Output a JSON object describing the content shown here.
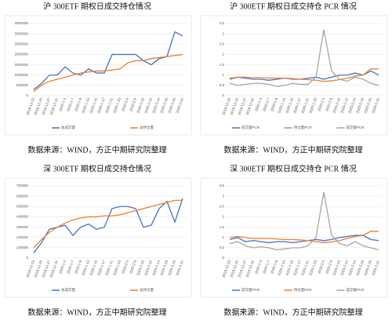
{
  "chart_data": [
    {
      "type": "line",
      "title": "沪 300ETF 期权日成交持仓情况",
      "source": "数据来源：WIND，方正中期研究院整理",
      "categories": [
        "2019-12-23",
        "2019-12-25",
        "2019-12-27",
        "2019-12-31",
        "2020-1-3",
        "2020-1-7",
        "2020-1-9",
        "2020-1-13",
        "2020-1-15",
        "2020-1-17",
        "2020-1-21",
        "2020-1-23",
        "2020-2-4",
        "2020-2-6",
        "2020-2-10",
        "2020-2-12",
        "2020-2-14",
        "2020-2-18",
        "2020-2-20",
        "2020-2-21"
      ],
      "series": [
        {
          "name": "总成交量",
          "color": "#4472c4",
          "values": [
            300000,
            600000,
            1000000,
            1000000,
            1400000,
            1100000,
            1000000,
            1300000,
            1100000,
            1100000,
            2000000,
            2000000,
            2000000,
            2000000,
            1700000,
            1500000,
            1800000,
            1900000,
            3100000,
            2900000
          ]
        },
        {
          "name": "总持仓量",
          "color": "#ed7d31",
          "values": [
            200000,
            500000,
            700000,
            800000,
            900000,
            1000000,
            1100000,
            1150000,
            1200000,
            1200000,
            1250000,
            1300000,
            1600000,
            1700000,
            1700000,
            1800000,
            1850000,
            1900000,
            1950000,
            2000000
          ]
        }
      ],
      "ylim": [
        0,
        3500000
      ],
      "yticks": [
        0,
        500000,
        1000000,
        1500000,
        2000000,
        2500000,
        3000000,
        3500000
      ]
    },
    {
      "type": "line",
      "title": "沪 300ETF 期权日成交持仓 PCR 情况",
      "source": "数据来源：WIND，方正中期研究院整理",
      "categories": [
        "2019-12-23",
        "2019-12-25",
        "2019-12-27",
        "2019-12-31",
        "2020-1-3",
        "2020-1-7",
        "2020-1-9",
        "2020-1-13",
        "2020-1-15",
        "2020-1-17",
        "2020-1-21",
        "2020-1-23",
        "2020-2-4",
        "2020-2-6",
        "2020-2-10",
        "2020-2-12",
        "2020-2-14",
        "2020-2-18",
        "2020-2-20",
        "2020-2-21"
      ],
      "series": [
        {
          "name": "成交量PCR",
          "color": "#4472c4",
          "values": [
            0.8,
            0.9,
            0.85,
            0.8,
            0.8,
            0.75,
            0.8,
            0.85,
            0.8,
            0.8,
            0.85,
            0.9,
            0.8,
            0.9,
            1.0,
            1.0,
            1.1,
            1.0,
            1.2,
            1.0
          ]
        },
        {
          "name": "持仓量PCR",
          "color": "#ed7d31",
          "values": [
            0.85,
            0.9,
            0.9,
            0.88,
            0.88,
            0.86,
            0.85,
            0.85,
            0.83,
            0.8,
            0.78,
            0.75,
            0.7,
            0.72,
            0.78,
            0.85,
            0.95,
            1.0,
            1.3,
            1.3
          ]
        },
        {
          "name": "成交额PCR",
          "color": "#a5a5a5",
          "values": [
            0.6,
            0.5,
            0.55,
            0.6,
            0.6,
            0.55,
            0.45,
            0.5,
            0.6,
            0.55,
            0.55,
            0.9,
            3.2,
            1.2,
            0.8,
            0.7,
            0.9,
            0.8,
            0.6,
            0.5
          ]
        }
      ],
      "ylim": [
        0,
        3.5
      ],
      "yticks": [
        0,
        0.5,
        1,
        1.5,
        2,
        2.5,
        3,
        3.5
      ]
    },
    {
      "type": "line",
      "title": "深 300ETF 期权日成交持仓情况",
      "source": "数据来源：WIND，方正中期研究院整理",
      "categories": [
        "2019-12-23",
        "2019-12-25",
        "2019-12-27",
        "2019-12-31",
        "2020-1-3",
        "2020-1-7",
        "2020-1-9",
        "2020-1-13",
        "2020-1-15",
        "2020-1-17",
        "2020-1-21",
        "2020-1-23",
        "2020-2-4",
        "2020-2-6",
        "2020-2-10",
        "2020-2-12",
        "2020-2-14",
        "2020-2-18",
        "2020-2-20",
        "2020-2-21"
      ],
      "series": [
        {
          "name": "总成交量",
          "color": "#4472c4",
          "values": [
            50000,
            150000,
            280000,
            300000,
            320000,
            220000,
            300000,
            330000,
            280000,
            300000,
            480000,
            500000,
            500000,
            480000,
            300000,
            320000,
            480000,
            550000,
            350000,
            580000
          ]
        },
        {
          "name": "总持仓量",
          "color": "#ed7d31",
          "values": [
            100000,
            180000,
            250000,
            300000,
            340000,
            370000,
            390000,
            400000,
            400000,
            410000,
            410000,
            420000,
            440000,
            460000,
            480000,
            500000,
            520000,
            540000,
            560000,
            560000
          ]
        }
      ],
      "ylim": [
        0,
        700000
      ],
      "yticks": [
        0,
        100000,
        200000,
        300000,
        400000,
        500000,
        600000,
        700000
      ]
    },
    {
      "type": "line",
      "title": "深 300ETF 期权日成交持仓 PCR 情况",
      "source": "数据来源：WIND，方正中期研究院整理",
      "categories": [
        "2019-12-23",
        "2019-12-25",
        "2019-12-27",
        "2019-12-31",
        "2020-1-3",
        "2020-1-7",
        "2020-1-9",
        "2020-1-13",
        "2020-1-15",
        "2020-1-17",
        "2020-1-21",
        "2020-1-23",
        "2020-2-4",
        "2020-2-6",
        "2020-2-10",
        "2020-2-12",
        "2020-2-14",
        "2020-2-18",
        "2020-2-20",
        "2020-2-21"
      ],
      "series": [
        {
          "name": "成交量PCR",
          "color": "#4472c4",
          "values": [
            0.9,
            1.0,
            0.8,
            0.85,
            0.8,
            0.75,
            0.8,
            0.8,
            0.75,
            0.8,
            0.85,
            0.9,
            0.85,
            0.9,
            1.0,
            1.05,
            1.1,
            1.1,
            0.9,
            0.85
          ]
        },
        {
          "name": "持仓量PCR",
          "color": "#ed7d31",
          "values": [
            1.0,
            1.05,
            1.0,
            0.95,
            0.95,
            0.95,
            0.93,
            0.9,
            0.9,
            0.88,
            0.85,
            0.8,
            0.75,
            0.78,
            0.85,
            0.95,
            1.05,
            1.1,
            1.3,
            1.3
          ]
        },
        {
          "name": "成交额PCR",
          "color": "#a5a5a5",
          "values": [
            0.7,
            0.8,
            0.6,
            0.5,
            0.55,
            0.5,
            0.4,
            0.45,
            0.5,
            0.5,
            0.6,
            1.0,
            3.2,
            1.1,
            0.7,
            0.6,
            0.8,
            0.6,
            0.5,
            0.4
          ]
        }
      ],
      "ylim": [
        0,
        3.5
      ],
      "yticks": [
        0,
        0.5,
        1,
        1.5,
        2,
        2.5,
        3,
        3.5
      ]
    }
  ]
}
